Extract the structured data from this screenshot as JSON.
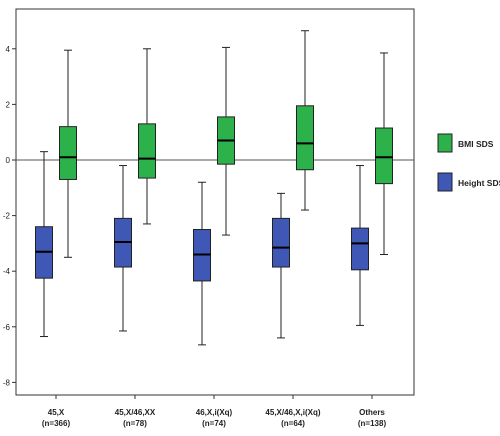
{
  "chart_data": {
    "type": "boxplot",
    "title": "",
    "xlabel": "",
    "ylabel": "",
    "ylim": [
      -9,
      5.5
    ],
    "yticks": [
      -8,
      -6,
      -4,
      -2,
      0,
      2,
      4
    ],
    "reference_line": 0,
    "grid": false,
    "legend_position": "right",
    "categories": [
      {
        "name": "45,X",
        "n": "(n=366)"
      },
      {
        "name": "45,X/46,XX",
        "n": "(n=78)"
      },
      {
        "name": "46,X,i(Xq)",
        "n": "(n=74)"
      },
      {
        "name": "45,X/46,X,i(Xq)",
        "n": "(n=64)"
      },
      {
        "name": "Others",
        "n": "(n=138)"
      }
    ],
    "series": [
      {
        "name": "Height SDS",
        "color": "#3f57b5",
        "boxes": [
          {
            "min": -6.35,
            "q1": -4.25,
            "median": -3.3,
            "q3": -2.4,
            "max": 0.3
          },
          {
            "min": -6.15,
            "q1": -3.85,
            "median": -2.95,
            "q3": -2.1,
            "max": -0.2
          },
          {
            "min": -6.65,
            "q1": -4.35,
            "median": -3.4,
            "q3": -2.5,
            "max": -0.8
          },
          {
            "min": -6.4,
            "q1": -3.85,
            "median": -3.15,
            "q3": -2.1,
            "max": -1.2
          },
          {
            "min": -5.95,
            "q1": -3.95,
            "median": -3.0,
            "q3": -2.45,
            "max": -0.2
          }
        ]
      },
      {
        "name": "BMI SDS",
        "color": "#2db24b",
        "boxes": [
          {
            "min": -3.5,
            "q1": -0.7,
            "median": 0.1,
            "q3": 1.2,
            "max": 3.95
          },
          {
            "min": -2.3,
            "q1": -0.65,
            "median": 0.05,
            "q3": 1.3,
            "max": 4.0
          },
          {
            "min": -2.7,
            "q1": -0.15,
            "median": 0.7,
            "q3": 1.55,
            "max": 4.05
          },
          {
            "min": -1.8,
            "q1": -0.35,
            "median": 0.6,
            "q3": 1.95,
            "max": 4.65
          },
          {
            "min": -3.4,
            "q1": -0.85,
            "median": 0.1,
            "q3": 1.15,
            "max": 3.85
          }
        ]
      }
    ],
    "legend": [
      {
        "label": "BMI SDS",
        "color": "#2db24b"
      },
      {
        "label": "Height SDS",
        "color": "#3f57b5"
      }
    ]
  }
}
